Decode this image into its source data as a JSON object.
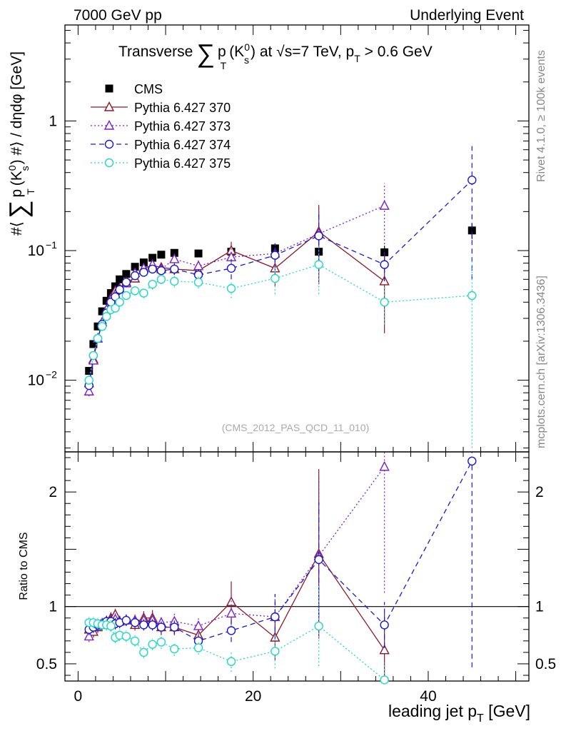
{
  "header": {
    "left": "7000 GeV pp",
    "right": "Underlying Event",
    "rivet": "Rivet 4.1.0, ≥ 100k events",
    "site": "mcplots.cern.ch [arXiv:1306.3436]",
    "analysis": "(CMS_2012_PAS_QCD_11_010)"
  },
  "chart_data": {
    "type": "scatter",
    "title": "Transverse ∑ p_T(K0_s) at √s=7 TeV, p_T > 0.6 GeV",
    "title_parts": {
      "t1": "Transverse",
      "sum": "∑",
      "p": "p",
      "T": "T",
      "K": "(K",
      "zero": "0",
      "s": "s",
      "close": ")",
      "rest": " at √s=7 TeV, p",
      "T2": "T",
      "gt": " > 0.6 GeV"
    },
    "ylabel_parts": {
      "a": "#⟨",
      "sum": "∑",
      "p": "p",
      "T": "T",
      "K": "(K",
      "zero": "0",
      "s": "s",
      "b": ") #⟩ / dηdφ [GeV]"
    },
    "xlabel_parts": {
      "a": "leading jet p",
      "T": "T",
      "b": " [GeV]"
    },
    "ratio_ylabel": "Ratio to CMS",
    "xlim": [
      -1.5,
      51.5
    ],
    "ylim": [
      0.0028,
      5.5
    ],
    "yscale": "log",
    "ratio_ylim": [
      0.35,
      2.35
    ],
    "x_ticks": [
      0,
      20,
      40
    ],
    "x_tick_labels": [
      "0",
      "20",
      "40"
    ],
    "y_tick_labels": [
      {
        "base": "10",
        "exp": "−2",
        "value": 0.01
      },
      {
        "base": "10",
        "exp": "−1",
        "value": 0.1
      },
      {
        "base": "1",
        "exp": "",
        "value": 1
      }
    ],
    "ratio_ticks": [
      0.5,
      1,
      2
    ],
    "ratio_tick_labels": [
      "0.5",
      "1",
      "2"
    ],
    "x": [
      1.25,
      1.75,
      2.25,
      2.75,
      3.25,
      3.75,
      4.25,
      4.75,
      5.5,
      6.5,
      7.5,
      8.5,
      9.5,
      11.0,
      13.75,
      17.5,
      22.5,
      27.5,
      35.0,
      45.0
    ],
    "series": [
      {
        "name": "CMS",
        "color": "#000000",
        "marker": "square",
        "line": "none",
        "values": [
          0.0118,
          0.019,
          0.026,
          0.034,
          0.041,
          0.047,
          0.053,
          0.06,
          0.066,
          0.075,
          0.081,
          0.088,
          0.093,
          0.096,
          0.095,
          0.098,
          0.104,
          0.098,
          0.097,
          0.143
        ],
        "err": [
          0.0008,
          0.001,
          0.0015,
          0.002,
          0.002,
          0.002,
          0.003,
          0.003,
          0.003,
          0.004,
          0.004,
          0.004,
          0.005,
          0.005,
          0.005,
          0.006,
          0.008,
          0.01,
          0.012,
          0.02
        ]
      },
      {
        "name": "Pythia 6.427 370",
        "color": "#8b1a2a",
        "marker": "triangle",
        "line": "solid",
        "values": [
          0.0095,
          0.0145,
          0.021,
          0.028,
          0.035,
          0.043,
          0.049,
          0.051,
          0.057,
          0.061,
          0.073,
          0.077,
          0.074,
          0.072,
          0.07,
          0.1,
          0.073,
          0.14,
          0.058,
          null
        ],
        "err": [
          0.0008,
          0.001,
          0.0015,
          0.002,
          0.002,
          0.003,
          0.003,
          0.003,
          0.004,
          0.004,
          0.005,
          0.006,
          0.006,
          0.007,
          0.008,
          0.017,
          0.02,
          0.085,
          0.035,
          null
        ],
        "ratio": [
          0.8,
          0.78,
          0.82,
          0.84,
          0.87,
          0.9,
          0.93,
          0.87,
          0.88,
          0.84,
          0.9,
          0.9,
          0.82,
          0.82,
          0.75,
          1.04,
          0.73,
          1.46,
          0.62,
          null
        ],
        "ratio_err": [
          0.05,
          0.05,
          0.05,
          0.05,
          0.05,
          0.05,
          0.05,
          0.05,
          0.05,
          0.05,
          0.06,
          0.07,
          0.07,
          0.07,
          0.07,
          0.18,
          0.2,
          0.74,
          0.32,
          null
        ]
      },
      {
        "name": "Pythia 6.427 373",
        "color": "#7b20c8",
        "marker": "triangle",
        "line": "dotted",
        "values": [
          0.0082,
          0.0142,
          0.021,
          0.028,
          0.035,
          0.042,
          0.046,
          0.05,
          0.056,
          0.067,
          0.073,
          0.078,
          0.072,
          0.086,
          0.076,
          0.089,
          0.095,
          0.135,
          0.222,
          null
        ],
        "err": [
          0.0007,
          0.001,
          0.0015,
          0.002,
          0.002,
          0.003,
          0.003,
          0.003,
          0.004,
          0.004,
          0.005,
          0.006,
          0.006,
          0.007,
          0.008,
          0.015,
          0.02,
          0.08,
          0.11,
          null
        ],
        "ratio": [
          0.74,
          0.82,
          0.83,
          0.85,
          0.87,
          0.88,
          0.89,
          0.87,
          0.88,
          0.88,
          0.88,
          0.88,
          0.86,
          0.87,
          0.83,
          0.94,
          0.91,
          1.44,
          2.22,
          null
        ],
        "ratio_err": [
          0.05,
          0.05,
          0.05,
          0.05,
          0.05,
          0.05,
          0.05,
          0.05,
          0.05,
          0.05,
          0.06,
          0.06,
          0.06,
          0.07,
          0.07,
          0.15,
          0.2,
          0.7,
          1.1,
          null
        ]
      },
      {
        "name": "Pythia 6.427 374",
        "color": "#1a1acc",
        "marker": "circle",
        "line": "dashed",
        "values": [
          0.0091,
          0.0155,
          0.021,
          0.027,
          0.033,
          0.04,
          0.044,
          0.05,
          0.057,
          0.064,
          0.068,
          0.072,
          0.07,
          0.072,
          0.065,
          0.073,
          0.092,
          0.13,
          0.078,
          0.35
        ],
        "err": [
          0.0007,
          0.001,
          0.0015,
          0.002,
          0.002,
          0.002,
          0.003,
          0.003,
          0.004,
          0.004,
          0.005,
          0.005,
          0.006,
          0.007,
          0.007,
          0.013,
          0.022,
          0.06,
          0.02,
          0.29
        ],
        "ratio": [
          0.8,
          0.82,
          0.84,
          0.85,
          0.87,
          0.87,
          0.85,
          0.86,
          0.88,
          0.86,
          0.84,
          0.84,
          0.82,
          0.82,
          0.7,
          0.79,
          0.91,
          1.41,
          0.84,
          2.27
        ],
        "ratio_err": [
          0.05,
          0.05,
          0.05,
          0.05,
          0.05,
          0.05,
          0.05,
          0.05,
          0.05,
          0.05,
          0.05,
          0.05,
          0.05,
          0.06,
          0.06,
          0.1,
          0.2,
          0.5,
          0.2,
          1.8
        ]
      },
      {
        "name": "Pythia 6.427 375",
        "color": "#20d8c4",
        "marker": "circle",
        "line": "dotted",
        "values": [
          0.01,
          0.0155,
          0.021,
          0.026,
          0.031,
          0.035,
          0.036,
          0.04,
          0.045,
          0.049,
          0.047,
          0.055,
          0.06,
          0.058,
          0.057,
          0.051,
          0.061,
          0.078,
          0.04,
          0.045
        ],
        "err": [
          0.0007,
          0.001,
          0.0015,
          0.002,
          0.002,
          0.002,
          0.002,
          0.003,
          0.003,
          0.004,
          0.004,
          0.005,
          0.005,
          0.006,
          0.006,
          0.008,
          0.015,
          0.032,
          0.013,
          0.042
        ],
        "ratio": [
          0.86,
          0.86,
          0.85,
          0.84,
          0.84,
          0.83,
          0.73,
          0.75,
          0.74,
          0.7,
          0.6,
          0.67,
          0.69,
          0.63,
          0.64,
          0.52,
          0.61,
          0.83,
          0.36,
          null
        ],
        "ratio_err": [
          0.05,
          0.05,
          0.05,
          0.05,
          0.05,
          0.05,
          0.05,
          0.05,
          0.05,
          0.05,
          0.05,
          0.05,
          0.06,
          0.06,
          0.06,
          0.09,
          0.15,
          0.35,
          0.15,
          null
        ]
      }
    ]
  }
}
